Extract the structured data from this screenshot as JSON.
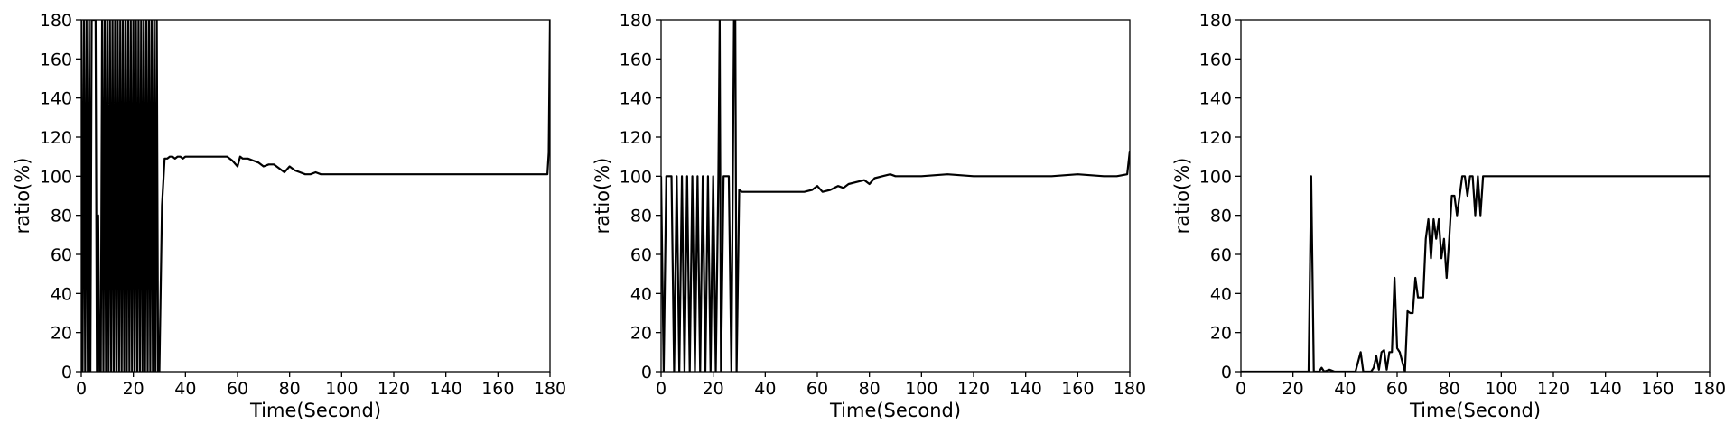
{
  "chart_data": [
    {
      "type": "line",
      "xlabel": "Time(Second)",
      "ylabel": "ratio(%)",
      "xlim": [
        0,
        180
      ],
      "ylim": [
        0,
        180
      ],
      "xticks": [
        0,
        20,
        40,
        60,
        80,
        100,
        120,
        140,
        160,
        180
      ],
      "yticks": [
        0,
        20,
        40,
        60,
        80,
        100,
        120,
        140,
        160,
        180
      ],
      "grid": false,
      "series": [
        {
          "color": "#000000",
          "x": [
            0,
            0.5,
            1,
            1.5,
            2,
            2.5,
            3,
            3.5,
            4,
            4.5,
            5,
            5.5,
            6,
            6.5,
            7,
            7.5,
            8,
            8.5,
            9,
            9.5,
            10,
            10.5,
            11,
            11.5,
            12,
            12.5,
            13,
            13.5,
            14,
            14.5,
            15,
            15.5,
            16,
            16.5,
            17,
            17.5,
            18,
            18.5,
            19,
            19.5,
            20,
            20.5,
            21,
            21.5,
            22,
            22.5,
            23,
            23.5,
            24,
            24.5,
            25,
            25.5,
            26,
            26.5,
            27,
            27.5,
            28,
            28.5,
            29,
            29.5,
            30,
            31,
            32,
            33,
            34,
            35,
            36,
            37,
            38,
            39,
            40,
            42,
            44,
            46,
            48,
            50,
            52,
            54,
            56,
            58,
            60,
            61,
            62,
            64,
            66,
            68,
            70,
            72,
            74,
            76,
            78,
            80,
            82,
            84,
            86,
            88,
            90,
            92,
            94,
            96,
            98,
            100,
            105,
            110,
            115,
            120,
            125,
            130,
            135,
            140,
            145,
            150,
            155,
            160,
            165,
            170,
            175,
            178,
            179,
            179.5,
            180
          ],
          "y": [
            180,
            0,
            180,
            0,
            180,
            0,
            180,
            0,
            180,
            180,
            180,
            180,
            0,
            80,
            0,
            0,
            180,
            0,
            180,
            0,
            180,
            0,
            180,
            0,
            180,
            0,
            180,
            0,
            180,
            0,
            180,
            0,
            180,
            0,
            180,
            0,
            180,
            0,
            180,
            0,
            180,
            0,
            180,
            0,
            180,
            0,
            180,
            0,
            180,
            0,
            180,
            0,
            180,
            0,
            180,
            0,
            180,
            0,
            180,
            0,
            0,
            85,
            109,
            109,
            110,
            110,
            109,
            110,
            110,
            109,
            110,
            110,
            110,
            110,
            110,
            110,
            110,
            110,
            110,
            108,
            105,
            110,
            109,
            109,
            108,
            107,
            105,
            106,
            106,
            104,
            102,
            105,
            103,
            102,
            101,
            101,
            102,
            101,
            101,
            101,
            101,
            101,
            101,
            101,
            101,
            101,
            101,
            101,
            101,
            101,
            101,
            101,
            101,
            101,
            101,
            101,
            101,
            101,
            101,
            112,
            180
          ]
        }
      ]
    },
    {
      "type": "line",
      "xlabel": "Time(Second)",
      "ylabel": "ratio(%)",
      "xlim": [
        0,
        180
      ],
      "ylim": [
        0,
        180
      ],
      "xticks": [
        0,
        20,
        40,
        60,
        80,
        100,
        120,
        140,
        160,
        180
      ],
      "yticks": [
        0,
        20,
        40,
        60,
        80,
        100,
        120,
        140,
        160,
        180
      ],
      "grid": false,
      "series": [
        {
          "color": "#000000",
          "x": [
            0,
            1,
            2,
            3,
            4,
            5,
            6,
            7,
            8,
            9,
            10,
            11,
            12,
            13,
            14,
            15,
            16,
            17,
            18,
            19,
            20,
            21,
            22,
            22.5,
            23,
            24,
            25,
            26,
            27,
            28,
            28.5,
            29,
            30,
            31,
            32,
            34,
            36,
            40,
            45,
            50,
            55,
            58,
            60,
            62,
            65,
            68,
            70,
            72,
            75,
            78,
            80,
            82,
            85,
            88,
            90,
            95,
            100,
            110,
            120,
            130,
            140,
            150,
            160,
            170,
            175,
            179,
            180
          ],
          "y": [
            100,
            0,
            100,
            100,
            100,
            0,
            100,
            0,
            100,
            0,
            100,
            0,
            100,
            0,
            100,
            0,
            100,
            0,
            100,
            0,
            100,
            0,
            100,
            180,
            0,
            100,
            100,
            100,
            0,
            180,
            180,
            0,
            93,
            92,
            92,
            92,
            92,
            92,
            92,
            92,
            92,
            93,
            95,
            92,
            93,
            95,
            94,
            96,
            97,
            98,
            96,
            99,
            100,
            101,
            100,
            100,
            100,
            101,
            100,
            100,
            100,
            100,
            101,
            100,
            100,
            101,
            113
          ]
        }
      ]
    },
    {
      "type": "line",
      "xlabel": "Time(Second)",
      "ylabel": "ratio(%)",
      "xlim": [
        0,
        180
      ],
      "ylim": [
        0,
        180
      ],
      "xticks": [
        0,
        20,
        40,
        60,
        80,
        100,
        120,
        140,
        160,
        180
      ],
      "yticks": [
        0,
        20,
        40,
        60,
        80,
        100,
        120,
        140,
        160,
        180
      ],
      "grid": false,
      "series": [
        {
          "color": "#000000",
          "x": [
            0,
            10,
            20,
            26,
            27,
            28,
            30,
            31,
            32,
            34,
            36,
            38,
            40,
            42,
            44,
            45,
            46,
            47,
            48,
            50,
            51,
            52,
            53,
            54,
            55,
            56,
            57,
            58,
            59,
            60,
            61,
            62,
            63,
            64,
            65,
            66,
            67,
            68,
            69,
            70,
            71,
            72,
            73,
            74,
            75,
            76,
            77,
            78,
            79,
            80,
            81,
            82,
            83,
            84,
            85,
            86,
            87,
            88,
            89,
            90,
            91,
            92,
            93,
            94,
            95,
            96,
            100,
            110,
            120,
            125,
            130,
            140,
            150,
            160,
            170,
            180
          ],
          "y": [
            0,
            0,
            0,
            0,
            100,
            0,
            0,
            2,
            0,
            1,
            0,
            0,
            0,
            0,
            0,
            5,
            10,
            0,
            0,
            0,
            2,
            8,
            1,
            10,
            11,
            1,
            10,
            10,
            48,
            12,
            10,
            5,
            0,
            31,
            30,
            30,
            48,
            38,
            38,
            38,
            68,
            78,
            58,
            78,
            68,
            78,
            58,
            68,
            48,
            68,
            90,
            90,
            80,
            90,
            100,
            100,
            90,
            100,
            100,
            80,
            100,
            80,
            100,
            100,
            100,
            100,
            100,
            100,
            100,
            100,
            100,
            100,
            100,
            100,
            100,
            100
          ]
        }
      ]
    }
  ]
}
